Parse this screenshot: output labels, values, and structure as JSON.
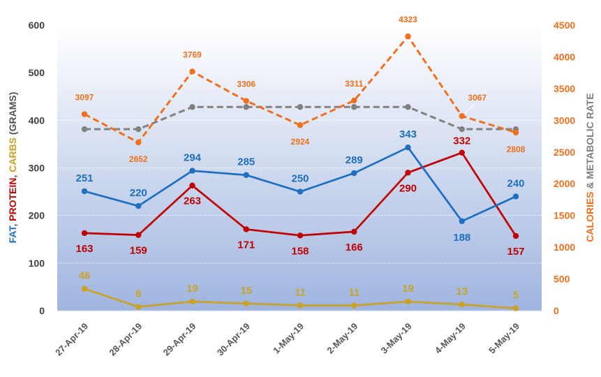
{
  "chart_data": {
    "type": "line",
    "categories": [
      "27-Apr-19",
      "28-Apr-19",
      "29-Apr-19",
      "30-Apr-19",
      "1-May-19",
      "2-May-19",
      "3-May-19",
      "4-May-19",
      "5-May-19"
    ],
    "left_axis": {
      "label_parts": [
        {
          "text": "FAT",
          "color": "#1f6fc0"
        },
        {
          "text": ", ",
          "color": "#555555"
        },
        {
          "text": "PROTEIN",
          "color": "#c00000"
        },
        {
          "text": ", ",
          "color": "#555555"
        },
        {
          "text": "CARBS",
          "color": "#c9a227"
        },
        {
          "text": " (GRAMS)",
          "color": "#555555"
        }
      ],
      "ylim": [
        0,
        600
      ],
      "ticks": [
        0,
        100,
        200,
        300,
        400,
        500,
        600
      ]
    },
    "right_axis": {
      "label_parts": [
        {
          "text": "CALORIES",
          "color": "#f07020"
        },
        {
          "text": " & METABOLIC RATE",
          "color": "#7f7f7f"
        }
      ],
      "ylim": [
        0,
        4500
      ],
      "ticks": [
        0,
        500,
        1000,
        1500,
        2000,
        2500,
        3000,
        3500,
        4000,
        4500
      ],
      "tick_color": "#f07020"
    },
    "series": [
      {
        "key": "fat",
        "axis": "left",
        "color": "#1f6fc0",
        "dashed": false,
        "labels": true,
        "label_position": "above",
        "values": [
          251,
          220,
          294,
          285,
          250,
          289,
          343,
          188,
          240
        ]
      },
      {
        "key": "protein",
        "axis": "left",
        "color": "#c00000",
        "dashed": false,
        "labels": true,
        "label_position": "below",
        "values": [
          163,
          159,
          263,
          171,
          158,
          166,
          290,
          332,
          157
        ]
      },
      {
        "key": "carbs",
        "axis": "left",
        "color": "#c9a227",
        "dashed": false,
        "labels": true,
        "label_position": "above",
        "values": [
          46,
          8,
          19,
          15,
          11,
          11,
          19,
          13,
          5
        ]
      },
      {
        "key": "calories",
        "axis": "right",
        "color": "#f07020",
        "dashed": true,
        "labels": true,
        "label_position": "mixed",
        "values": [
          3097,
          2652,
          3769,
          3306,
          2924,
          3311,
          4323,
          3067,
          2808
        ]
      },
      {
        "key": "metabolic_rate",
        "axis": "right",
        "color": "#808080",
        "dashed": true,
        "labels": false,
        "values": [
          2860,
          2860,
          3210,
          3210,
          3210,
          3210,
          3210,
          2860,
          2860
        ]
      }
    ],
    "background": {
      "gradient_top": "#ffffff",
      "gradient_bottom": "#9fb5df"
    },
    "grid": true
  }
}
